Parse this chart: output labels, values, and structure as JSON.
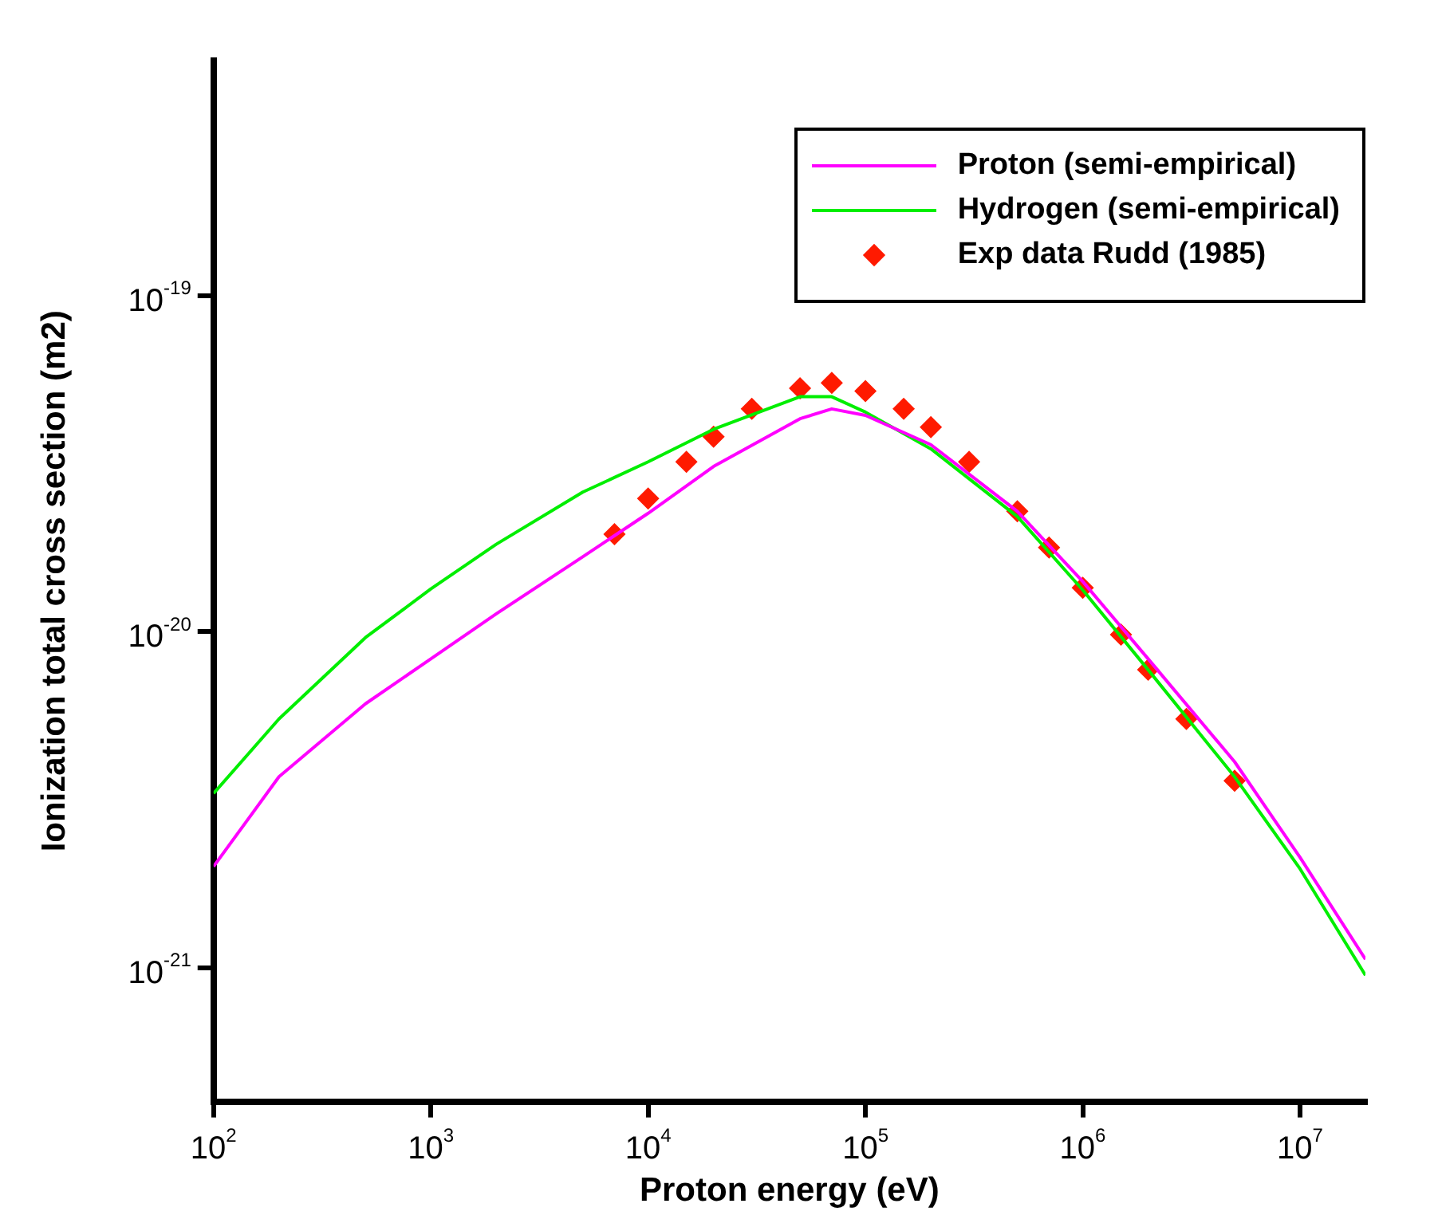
{
  "chart_data": {
    "type": "line",
    "xlabel": "Proton energy (eV)",
    "ylabel": "Ionization total cross section (m2)",
    "log": "xy",
    "xlim": [
      100,
      20000000
    ],
    "ylim": [
      4e-22,
      5e-19
    ],
    "xticks": [
      {
        "value": 100,
        "label": "10$^{2}$"
      },
      {
        "value": 1000,
        "label": "10$^{3}$"
      },
      {
        "value": 10000,
        "label": "10$^{4}$"
      },
      {
        "value": 100000,
        "label": "10$^{5}$"
      },
      {
        "value": 1000000,
        "label": "10$^{6}$"
      },
      {
        "value": 10000000,
        "label": "10$^{7}$"
      }
    ],
    "yticks": [
      {
        "value": 1e-21,
        "label": "10$^{-21}$"
      },
      {
        "value": 1e-20,
        "label": "10$^{-20}$"
      },
      {
        "value": 1e-19,
        "label": "10$^{-19}$"
      }
    ],
    "grid": false,
    "legend": "top right",
    "series": [
      {
        "name": "Proton (semi-empirical)",
        "color": "#ff00ff",
        "type": "line",
        "marker": "none",
        "x": [
          100,
          200,
          500,
          1000,
          2000,
          5000,
          10000,
          20000,
          50000,
          70000,
          100000,
          200000,
          500000,
          1000000,
          2000000,
          5000000,
          10000000,
          20000000
        ],
        "values": [
          2e-21,
          3.7e-21,
          6.1e-21,
          8.3e-21,
          1.13e-20,
          1.67e-20,
          2.25e-20,
          3.1e-20,
          4.3e-20,
          4.6e-20,
          4.4e-20,
          3.6e-20,
          2.28e-20,
          1.41e-20,
          8.3e-21,
          4.1e-21,
          2.13e-21,
          1.06e-21
        ]
      },
      {
        "name": "Hydrogen (semi-empirical)",
        "color": "#00ee00",
        "type": "line",
        "marker": "none",
        "x": [
          100,
          200,
          500,
          1000,
          2000,
          5000,
          10000,
          20000,
          50000,
          70000,
          100000,
          200000,
          500000,
          1000000,
          2000000,
          5000000,
          10000000,
          20000000
        ],
        "values": [
          3.3e-21,
          5.5e-21,
          9.6e-21,
          1.34e-20,
          1.82e-20,
          2.6e-20,
          3.2e-20,
          4e-20,
          5e-20,
          5e-20,
          4.5e-20,
          3.5e-20,
          2.2e-20,
          1.33e-20,
          7.7e-21,
          3.7e-21,
          1.97e-21,
          9.5e-22
        ]
      },
      {
        "name": "Exp data Rudd (1985)",
        "color": "#ff1a00",
        "type": "scatter",
        "marker": "diamond",
        "x": [
          7000,
          10000,
          15000,
          20000,
          30000,
          50000,
          70000,
          100000,
          150000,
          200000,
          300000,
          500000,
          700000,
          1000000,
          1500000,
          2000000,
          3000000,
          5000000
        ],
        "values": [
          1.95e-20,
          2.49e-20,
          3.2e-20,
          3.8e-20,
          4.6e-20,
          5.3e-20,
          5.5e-20,
          5.2e-20,
          4.6e-20,
          4.06e-20,
          3.2e-20,
          2.28e-20,
          1.78e-20,
          1.35e-20,
          9.8e-21,
          7.7e-21,
          5.5e-21,
          3.6e-21
        ]
      }
    ]
  }
}
